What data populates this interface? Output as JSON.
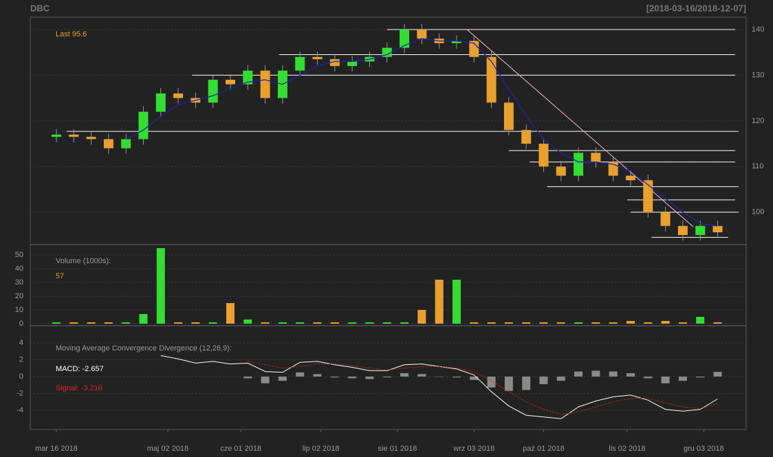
{
  "header": {
    "title": "DBC",
    "range": "[2018-03-16/2018-12-07]"
  },
  "chart_data": [
    {
      "type": "candlestick",
      "annotation": "Last 95.6",
      "x": [
        0,
        5,
        10,
        15,
        20,
        25,
        30,
        35,
        40,
        45,
        50,
        55,
        60,
        65,
        70,
        75,
        80,
        85,
        90,
        95,
        100,
        105,
        110,
        115,
        120,
        125,
        130,
        135,
        140,
        145,
        150,
        155,
        160,
        165,
        170,
        175,
        180,
        185,
        190
      ],
      "open": [
        116.5,
        117,
        116.5,
        116,
        114,
        116,
        122,
        126,
        125,
        124,
        129,
        128,
        131,
        125,
        131,
        134,
        133.5,
        132,
        133,
        134,
        136,
        140,
        138,
        137,
        137.5,
        134,
        124,
        118,
        115,
        110,
        108,
        113,
        111,
        108,
        107,
        100,
        97,
        95,
        97
      ],
      "high": [
        118.2,
        118.2,
        117.7,
        117.2,
        117.2,
        123.2,
        127.2,
        127.2,
        126.2,
        130.2,
        130.2,
        132.2,
        132.2,
        132.2,
        135.2,
        135.2,
        134.7,
        134.2,
        135.2,
        137.2,
        141.2,
        141.2,
        139.2,
        138.7,
        138.7,
        135.2,
        125.2,
        119.2,
        116.2,
        111.2,
        114.2,
        114.2,
        112.2,
        109.2,
        108.2,
        101.2,
        98.2,
        98.2,
        98.2
      ],
      "low": [
        115.3,
        115.3,
        114.8,
        112.8,
        112.8,
        114.8,
        120.8,
        123.8,
        122.8,
        122.8,
        126.8,
        126.8,
        123.8,
        123.8,
        129.8,
        132.3,
        130.8,
        130.8,
        131.8,
        132.8,
        134.8,
        136.8,
        135.8,
        135.8,
        132.8,
        122.8,
        116.8,
        113.8,
        108.8,
        106.8,
        106.8,
        109.8,
        106.8,
        105.8,
        98.8,
        95.8,
        93.8,
        93.8,
        94.4
      ],
      "close": [
        117,
        116.5,
        116,
        114,
        116,
        122,
        126,
        125,
        124,
        129,
        128,
        131,
        125,
        131,
        134,
        133.5,
        132,
        133,
        134,
        136,
        140,
        138,
        137,
        137.5,
        134,
        124,
        118,
        115,
        110,
        108,
        113,
        111,
        108,
        107,
        100,
        97,
        95,
        97,
        95.6
      ],
      "up_color": "#33dd33",
      "down_color": "#e8a030",
      "ma": {
        "color": "#2222aa",
        "values": [
          null,
          null,
          null,
          null,
          116,
          118,
          121,
          123.5,
          124.5,
          125.5,
          127,
          128.5,
          129,
          128,
          130,
          132,
          133,
          133,
          133.5,
          134.5,
          136.5,
          138,
          137.5,
          137.5,
          137,
          133,
          127,
          121,
          116,
          113,
          111,
          111,
          110.5,
          109,
          106,
          103,
          100,
          97.5,
          97
        ]
      },
      "levels": [
        {
          "price": 140,
          "from": 95,
          "to": 195
        },
        {
          "price": 134.5,
          "from": 64,
          "to": 195
        },
        {
          "price": 130,
          "from": 39,
          "to": 195
        },
        {
          "price": 117.7,
          "from": 3,
          "to": 196
        },
        {
          "price": 113.5,
          "from": 130,
          "to": 195
        },
        {
          "price": 111,
          "from": 136,
          "to": 195
        },
        {
          "price": 105.6,
          "from": 141,
          "to": 196
        },
        {
          "price": 102.7,
          "from": 164,
          "to": 195
        },
        {
          "price": 100,
          "from": 165,
          "to": 196
        },
        {
          "price": 94.5,
          "from": 171,
          "to": 193
        }
      ],
      "level_color": "#ffffff",
      "trendline": {
        "x": [
          118,
          183
        ],
        "y": [
          140,
          96.8
        ],
        "color": "#ffbbcc"
      },
      "xlim": [
        -7.5,
        198.2
      ],
      "ylim": [
        92.9,
        142.7
      ],
      "yticks": [
        100,
        110,
        120,
        130,
        140
      ],
      "grid": true
    },
    {
      "type": "bar",
      "title": "Volume (1000s):",
      "annotation": "57",
      "values": [
        1,
        1,
        1,
        1,
        1,
        7,
        55,
        1,
        1,
        1,
        15,
        3,
        1,
        1,
        1,
        1,
        1,
        1,
        1,
        1,
        1,
        10,
        32,
        32,
        1,
        1,
        1,
        1,
        1,
        1,
        1,
        1,
        1,
        2,
        1,
        2,
        1,
        5,
        1
      ],
      "ylim": [
        -1.5,
        57.5
      ],
      "yticks": [
        0,
        10,
        20,
        30,
        40,
        50
      ],
      "grid": true
    },
    {
      "type": "macd",
      "title": "Moving Average Convergence Divergence (12,26,9):",
      "series": [
        {
          "name": "MACD: -2.657",
          "color": "#ffffff",
          "values": [
            null,
            null,
            null,
            null,
            null,
            null,
            2.5,
            2.1,
            1.6,
            1.8,
            1.5,
            1.6,
            0.6,
            0.5,
            1.7,
            1.8,
            1.4,
            1.1,
            0.7,
            0.7,
            1.4,
            1.5,
            1.2,
            0.9,
            0.2,
            -1.8,
            -3.5,
            -4.6,
            -4.8,
            -5.0,
            -3.6,
            -2.9,
            -2.4,
            -2.2,
            -2.8,
            -3.9,
            -4.1,
            -3.9,
            -2.657
          ]
        },
        {
          "name": "Signal: -3.216",
          "color": "#dd2222",
          "values": [
            null,
            null,
            null,
            null,
            null,
            null,
            null,
            null,
            null,
            null,
            null,
            1.8,
            1.4,
            1.0,
            1.2,
            1.5,
            1.5,
            1.3,
            1.0,
            0.8,
            1.0,
            1.2,
            1.2,
            1.0,
            0.6,
            -0.5,
            -1.8,
            -3.0,
            -3.9,
            -4.5,
            -4.2,
            -3.6,
            -3.0,
            -2.6,
            -2.6,
            -3.1,
            -3.6,
            -3.8,
            -3.216
          ]
        }
      ],
      "histogram": {
        "color": "#8a8a8a",
        "values": [
          null,
          null,
          null,
          null,
          null,
          null,
          null,
          null,
          null,
          null,
          null,
          -0.2,
          -0.8,
          -0.5,
          0.5,
          0.3,
          -0.1,
          -0.2,
          -0.3,
          -0.1,
          0.4,
          0.3,
          0,
          -0.1,
          -0.4,
          -1.3,
          -1.7,
          -1.6,
          -0.9,
          -0.5,
          0.6,
          0.7,
          0.6,
          0.4,
          -0.2,
          -0.8,
          -0.5,
          -0.1,
          0.559
        ]
      },
      "ylim": [
        -6.29,
        6.04
      ],
      "yticks": [
        -4,
        -2,
        0,
        2,
        4
      ],
      "grid": true,
      "xticks": [
        {
          "value": 0,
          "label": "mar 16 2018"
        },
        {
          "value": 32,
          "label": "maj 02 2018"
        },
        {
          "value": 53,
          "label": "cze 01 2018"
        },
        {
          "value": 76,
          "label": "lip 02 2018"
        },
        {
          "value": 98,
          "label": "sie 01 2018"
        },
        {
          "value": 120,
          "label": "wrz 03 2018"
        },
        {
          "value": 140,
          "label": "paź 01 2018"
        },
        {
          "value": 164,
          "label": "lis 02 2018"
        },
        {
          "value": 186,
          "label": "gru 03 2018"
        }
      ]
    }
  ]
}
